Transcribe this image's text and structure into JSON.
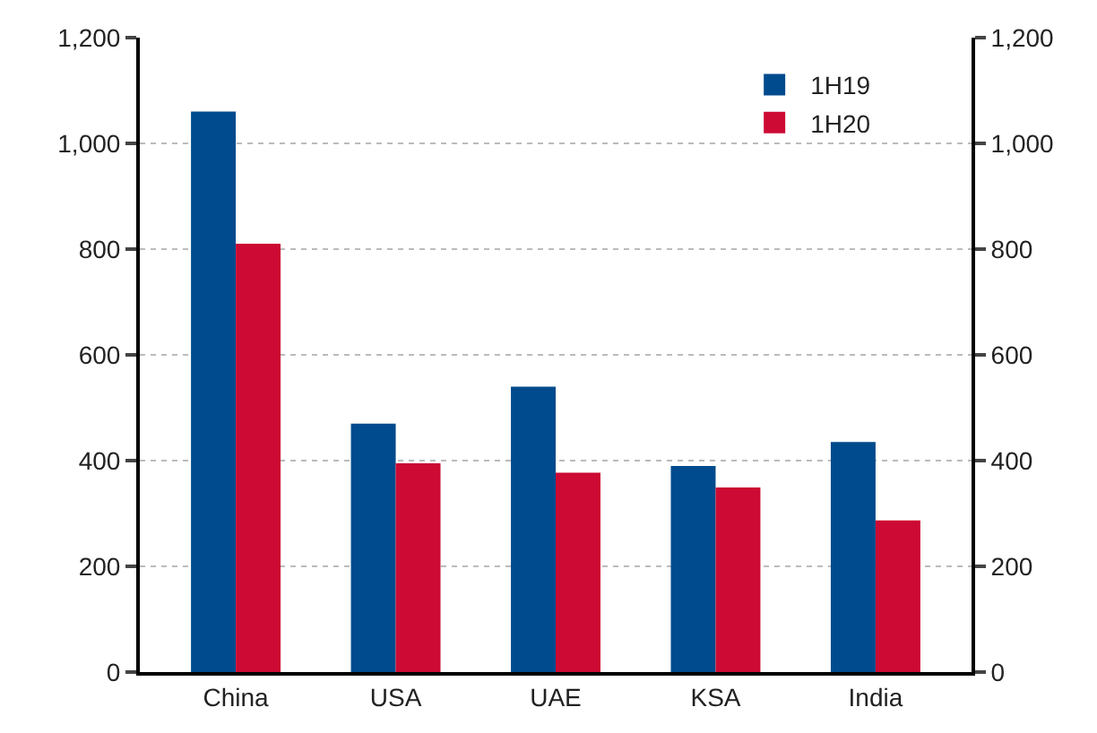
{
  "chart_data": {
    "type": "bar",
    "categories": [
      "China",
      "USA",
      "UAE",
      "KSA",
      "India"
    ],
    "series": [
      {
        "name": "1H19",
        "color": "#004b8d",
        "values": [
          1060,
          470,
          540,
          390,
          435
        ]
      },
      {
        "name": "1H20",
        "color": "#cc0a33",
        "values": [
          810,
          395,
          377,
          349,
          287
        ]
      }
    ],
    "ylim": [
      0,
      1200
    ],
    "yticks": [
      {
        "value": 0,
        "label": "0"
      },
      {
        "value": 200,
        "label": "200"
      },
      {
        "value": 400,
        "label": "400"
      },
      {
        "value": 600,
        "label": "600"
      },
      {
        "value": 800,
        "label": "800"
      },
      {
        "value": 1000,
        "label": "1,000"
      },
      {
        "value": 1200,
        "label": "1,200"
      }
    ],
    "y2lim": [
      0,
      1200
    ],
    "y2ticks": [
      {
        "value": 0,
        "label": "0"
      },
      {
        "value": 200,
        "label": "200"
      },
      {
        "value": 400,
        "label": "400"
      },
      {
        "value": 600,
        "label": "600"
      },
      {
        "value": 800,
        "label": "800"
      },
      {
        "value": 1000,
        "label": "1,000"
      },
      {
        "value": 1200,
        "label": "1,200"
      }
    ],
    "grid": "y",
    "legend": "top right"
  }
}
